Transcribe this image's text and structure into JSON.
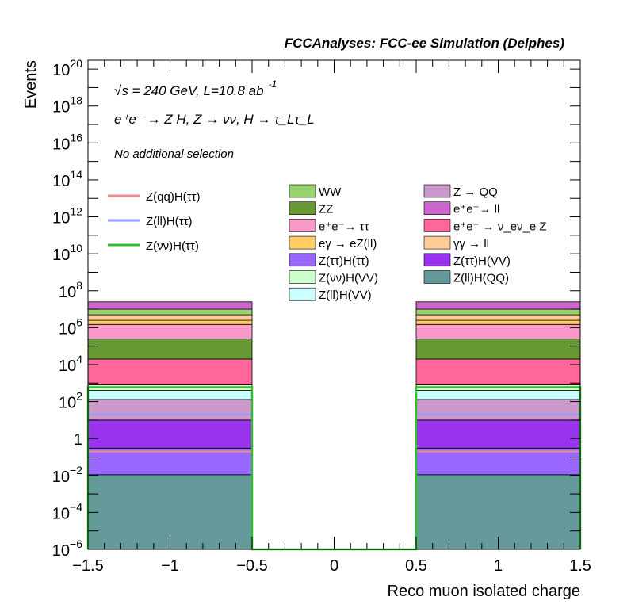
{
  "chart_data": {
    "type": "bar",
    "header": "FCCAnalyses: FCC-ee Simulation (Delphes)",
    "annotations": {
      "energy_lumi": "√s = 240 GeV, L=10.8 ab",
      "energy_lumi_exp": "-1",
      "process": "e⁺e⁻ → Z H, Z → νν, H → τ_Lτ_L",
      "selection": "No additional selection"
    },
    "xlabel": "Reco muon isolated charge",
    "ylabel": "Events",
    "xlim": [
      -1.5,
      1.5
    ],
    "ylim": [
      1e-06,
      3e+20
    ],
    "yscale": "log",
    "x_ticks": [
      "−1.5",
      "−1",
      "−0.5",
      "0",
      "0.5",
      "1",
      "1.5"
    ],
    "y_ticks": [
      {
        "base": "10",
        "exp": "20",
        "value": 1e+20
      },
      {
        "base": "10",
        "exp": "18",
        "value": 1e+18
      },
      {
        "base": "10",
        "exp": "16",
        "value": 1e+16
      },
      {
        "base": "10",
        "exp": "14",
        "value": 100000000000000.0
      },
      {
        "base": "10",
        "exp": "12",
        "value": 1000000000000.0
      },
      {
        "base": "10",
        "exp": "10",
        "value": 10000000000.0
      },
      {
        "base": "10",
        "exp": "8",
        "value": 100000000.0
      },
      {
        "base": "10",
        "exp": "6",
        "value": 1000000.0
      },
      {
        "base": "10",
        "exp": "4",
        "value": 10000.0
      },
      {
        "base": "10",
        "exp": "2",
        "value": 100.0
      },
      {
        "base": "1",
        "exp": "",
        "value": 1
      },
      {
        "base": "10",
        "exp": "−2",
        "value": 0.01
      },
      {
        "base": "10",
        "exp": "−4",
        "value": 0.0001
      },
      {
        "base": "10",
        "exp": "−6",
        "value": 1e-06
      }
    ],
    "bins": [
      {
        "range": [
          -1.5,
          -0.5
        ],
        "stack_tops": [
          0.011,
          0.3,
          10,
          130,
          400,
          800,
          20000.0,
          250000.0,
          1500000.0,
          2500000.0,
          5000000.0,
          10000000.0,
          25000000.0
        ],
        "signal": {
          "qq": 0.2,
          "ll": 20,
          "vv": 600
        }
      },
      {
        "range": [
          -0.5,
          0.5
        ],
        "stack_tops": [
          1e-06,
          1e-06,
          1e-06,
          1e-06,
          1e-06,
          1e-06,
          1e-06,
          1e-06,
          1e-06,
          1e-06,
          1e-06,
          1e-06,
          1e-06
        ],
        "signal": {
          "qq": 1e-06,
          "ll": 1e-06,
          "vv": 1e-06
        }
      },
      {
        "range": [
          0.5,
          1.5
        ],
        "stack_tops": [
          0.011,
          0.3,
          10,
          130,
          400,
          800,
          20000.0,
          250000.0,
          1500000.0,
          2500000.0,
          5000000.0,
          10000000.0,
          25000000.0
        ],
        "signal": {
          "qq": 0.2,
          "ll": 20,
          "vv": 600
        }
      }
    ],
    "stack_order": [
      "Z(ll)H(QQ)",
      "Z(ττ)H(ττ)",
      "Z(ττ)H(VV)",
      "Z → QQ",
      "Z(ll)H(VV)",
      "Z(νν)H(VV)",
      "e⁺e⁻ → ν_eν_e Z",
      "ZZ",
      "e⁺e⁻→ ττ",
      "eγ → eZ(ll)",
      "γγ → ll",
      "WW",
      "e⁺e⁻→ ll"
    ],
    "signals": [
      {
        "key": "qq",
        "name": "Z(qq)H(ττ)",
        "color": "#f08a8a"
      },
      {
        "key": "ll",
        "name": "Z(ll)H(ττ)",
        "color": "#8f9cff"
      },
      {
        "key": "vv",
        "name": "Z(νν)H(ττ)",
        "color": "#2fbf2f"
      }
    ],
    "backgrounds": [
      {
        "name": "WW",
        "color": "#99d36e"
      },
      {
        "name": "Z → QQ",
        "color": "#cc99cc"
      },
      {
        "name": "ZZ",
        "color": "#669933"
      },
      {
        "name": "e⁺e⁻→ ll",
        "color": "#cc66cc"
      },
      {
        "name": "e⁺e⁻→ ττ",
        "color": "#f799c9"
      },
      {
        "name": "e⁺e⁻ → ν_eν_e Z",
        "color": "#ff6699"
      },
      {
        "name": "eγ → eZ(ll)",
        "color": "#ffcc66"
      },
      {
        "name": "γγ → ll",
        "color": "#ffcc99"
      },
      {
        "name": "Z(ττ)H(ττ)",
        "color": "#9966ff"
      },
      {
        "name": "Z(ττ)H(VV)",
        "color": "#9933ee"
      },
      {
        "name": "Z(νν)H(VV)",
        "color": "#ccffcc"
      },
      {
        "name": "Z(ll)H(QQ)",
        "color": "#669999"
      },
      {
        "name": "Z(ll)H(VV)",
        "color": "#ccffff"
      }
    ]
  }
}
